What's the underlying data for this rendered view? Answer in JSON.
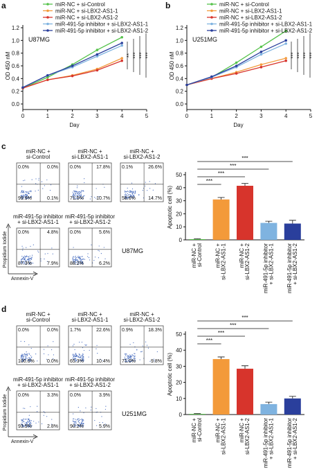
{
  "chart_data": [
    {
      "type": "line",
      "panel": "a",
      "label": "U87MG",
      "x_label": "Day",
      "y_label": "OD 450 nM",
      "x": [
        0,
        1,
        2,
        3,
        4
      ],
      "xlim": [
        0,
        5
      ],
      "xticks": [
        0,
        1,
        2,
        3,
        4,
        5
      ],
      "ylim": [
        0,
        1.2
      ],
      "yticks": [
        {
          "value": 0,
          "label": "0.0"
        },
        0.2,
        0.4,
        0.6,
        0.8,
        {
          "value": 1,
          "label": "1.0"
        },
        1.2
      ],
      "annotations": [
        "**",
        "***",
        "***",
        "***"
      ],
      "series": [
        {
          "name": "miR-NC + si-Control",
          "color": "#55c24a",
          "values": [
            0.25,
            0.42,
            0.62,
            0.85,
            1.05
          ]
        },
        {
          "name": "miR-NC + si-LBX2-AS1-1",
          "color": "#f39a3a",
          "values": [
            0.25,
            0.38,
            0.45,
            0.55,
            0.72
          ]
        },
        {
          "name": "miR-NC + si-LBX2-AS1-2",
          "color": "#d7342c",
          "values": [
            0.25,
            0.38,
            0.44,
            0.53,
            0.68
          ]
        },
        {
          "name": "miR-491-5p inhibitor + si-LBX2-AS1-1",
          "color": "#7fb3e0",
          "values": [
            0.26,
            0.45,
            0.58,
            0.75,
            0.92
          ]
        },
        {
          "name": "miR-491-5p inhibitor + si-LBX2-AS1-2",
          "color": "#2a3f9c",
          "values": [
            0.26,
            0.45,
            0.6,
            0.78,
            0.96
          ]
        }
      ]
    },
    {
      "type": "line",
      "panel": "b",
      "label": "U251MG",
      "x_label": "Day",
      "y_label": "OD 450 nM",
      "x": [
        0,
        1,
        2,
        3,
        4
      ],
      "xlim": [
        0,
        5
      ],
      "xticks": [
        0,
        1,
        2,
        3,
        4,
        5
      ],
      "ylim": [
        0,
        1.2
      ],
      "yticks": [
        {
          "value": 0,
          "label": "0.0"
        },
        0.2,
        0.4,
        0.6,
        0.8,
        {
          "value": 1,
          "label": "1.0"
        },
        1.2
      ],
      "annotations": [
        "***",
        "***",
        "***",
        "***"
      ],
      "series": [
        {
          "name": "miR-NC + si-Control",
          "color": "#55c24a",
          "values": [
            0.3,
            0.42,
            0.65,
            0.9,
            1.15
          ]
        },
        {
          "name": "miR-NC + si-LBX2-AS1-1",
          "color": "#f39a3a",
          "values": [
            0.3,
            0.4,
            0.5,
            0.62,
            0.72
          ]
        },
        {
          "name": "miR-NC + si-LBX2-AS1-2",
          "color": "#d7342c",
          "values": [
            0.3,
            0.4,
            0.48,
            0.58,
            0.68
          ]
        },
        {
          "name": "miR-491-5p inhibitor + si-LBX2-AS1-1",
          "color": "#7fb3e0",
          "values": [
            0.3,
            0.42,
            0.58,
            0.78,
            0.95
          ]
        },
        {
          "name": "miR-491-5p inhibitor + si-LBX2-AS1-2",
          "color": "#2a3f9c",
          "values": [
            0.3,
            0.43,
            0.6,
            0.82,
            1.0
          ]
        }
      ]
    },
    {
      "type": "bar",
      "y_label": "Apoptotic cell (%)",
      "categories": [
        [
          "miR-NC +",
          "si-Control"
        ],
        [
          "miR-NC +",
          "si-LBX2-AS1-1"
        ],
        [
          "miR-NC +",
          "si-LBX2-AS1-2"
        ],
        [
          "miR-491-5p inhibitor",
          "+ si-LBX2-AS1-1"
        ],
        [
          "miR-491-5p inhibitor",
          "+ si-LBX2-AS1-2"
        ]
      ],
      "values": [
        0.5,
        31,
        41.5,
        13,
        12.5
      ],
      "errors": [
        0.3,
        1.5,
        1.8,
        1.3,
        2.5
      ],
      "colors": [
        "#55c24a",
        "#f39a3a",
        "#d7342c",
        "#7fb3e0",
        "#2a3f9c"
      ],
      "ylim": [
        0,
        50
      ],
      "yticks": [
        0,
        10,
        20,
        30,
        40,
        50
      ],
      "annotations": [
        "***",
        "***",
        "***",
        "***"
      ]
    },
    {
      "type": "bar",
      "y_label": "Apoptotic cell (%)",
      "categories": [
        [
          "miR-NC +",
          "si-Control"
        ],
        [
          "miR-NC +",
          "si-LBX2-AS1-1"
        ],
        [
          "miR-NC +",
          "si-LBX2-AS1-2"
        ],
        [
          "miR-491-5p inhibitor",
          "+ si-LBX2-AS1-1"
        ],
        [
          "miR-491-5p inhibitor",
          "+ si-LBX2-AS1-2"
        ]
      ],
      "values": [
        0.4,
        34.5,
        28.5,
        6.5,
        10
      ],
      "errors": [
        0.2,
        1.3,
        1.8,
        1.2,
        1.3
      ],
      "colors": [
        "#55c24a",
        "#f39a3a",
        "#d7342c",
        "#7fb3e0",
        "#2a3f9c"
      ],
      "ylim": [
        0,
        50
      ],
      "yticks": [
        0,
        10,
        20,
        30,
        40,
        50
      ],
      "annotations": [
        "***",
        "***",
        "***",
        "***"
      ]
    }
  ],
  "flow_cytometry": [
    {
      "panel": "c",
      "cell_line": "U87MG",
      "y_label": "Propidium Iodide",
      "x_label": "Annexin-V",
      "plots": [
        {
          "title": [
            "miR-NC +",
            "si-Control"
          ],
          "quadrants": [
            "0.0%",
            "0.0%",
            "99.9%",
            "0.1%"
          ]
        },
        {
          "title": [
            "miR-NC +",
            "si-LBX2-AS1-1"
          ],
          "quadrants": [
            "0.0%",
            "17.8%",
            "71.5%",
            "10.7%"
          ]
        },
        {
          "title": [
            "miR-NC +",
            "si-LBX2-AS1-2"
          ],
          "quadrants": [
            "0.1%",
            "26.6%",
            "58.6%",
            "14.7%"
          ]
        },
        {
          "title": [
            "miR-491-5p inhibitor",
            "+ si-LBX2-AS1-1"
          ],
          "quadrants": [
            "0.0%",
            "4.8%",
            "87.3%",
            "7.9%"
          ]
        },
        {
          "title": [
            "miR-491-5p inhibitor",
            "+ si-LBX2-AS1-2"
          ],
          "quadrants": [
            "0.0%",
            "5.6%",
            "88.2%",
            "6.2%"
          ]
        }
      ]
    },
    {
      "panel": "d",
      "cell_line": "U251MG",
      "y_label": "Propidium Iodide",
      "x_label": "Annexin-V",
      "plots": [
        {
          "title": [
            "miR-NC +",
            "si-Control"
          ],
          "quadrants": [
            "0.0%",
            "0.0%",
            "100.0%",
            "0.0%"
          ]
        },
        {
          "title": [
            "miR-NC +",
            "si-LBX2-AS1-1"
          ],
          "quadrants": [
            "1.7%",
            "22.6%",
            "65.3%",
            "10.4%"
          ]
        },
        {
          "title": [
            "miR-NC +",
            "si-LBX2-AS1-2"
          ],
          "quadrants": [
            "0.9%",
            "18.3%",
            "71.0%",
            "9.8%"
          ]
        },
        {
          "title": [
            "miR-491-5p inhibitor",
            "+ si-LBX2-AS1-1"
          ],
          "quadrants": [
            "0.0%",
            "3.3%",
            "93.9%",
            "2.8%"
          ]
        },
        {
          "title": [
            "miR-491-5p inhibitor",
            "+ si-LBX2-AS1-2"
          ],
          "quadrants": [
            "0.0%",
            "3.9%",
            "90.2%",
            "5.9%"
          ]
        }
      ]
    }
  ]
}
